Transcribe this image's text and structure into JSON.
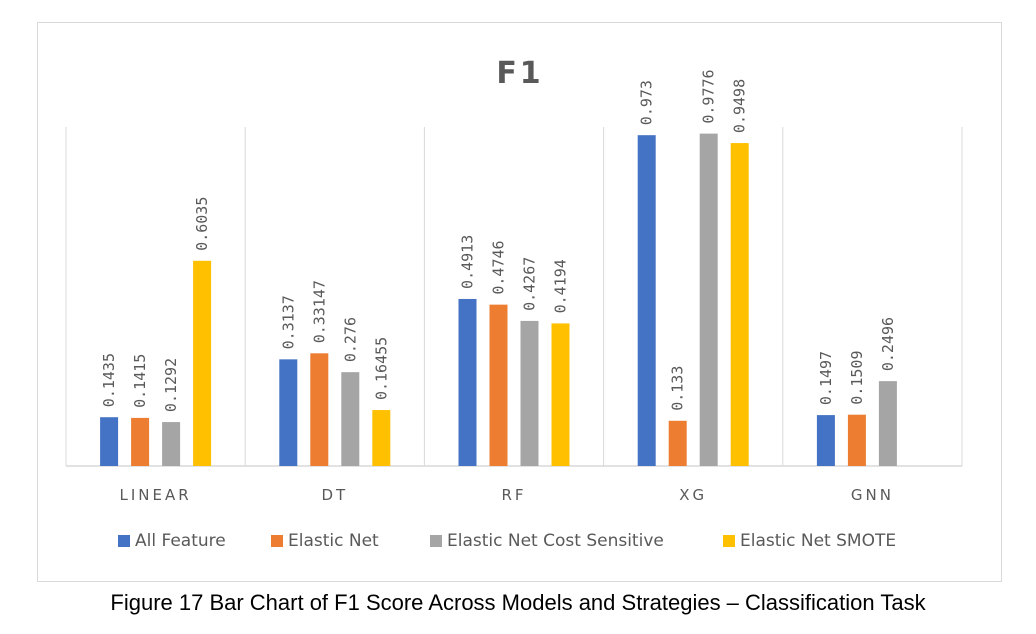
{
  "chart_data": {
    "type": "bar",
    "title": "F1",
    "categories": [
      "LINEAR",
      "DT",
      "RF",
      "XG",
      "GNN"
    ],
    "value_labels": [
      [
        "0.1435",
        "0.1415",
        "0.1292",
        "0.6035"
      ],
      [
        "0.3137",
        "0.33147",
        "0.276",
        "0.16455"
      ],
      [
        "0.4913",
        "0.4746",
        "0.4267",
        "0.4194"
      ],
      [
        "0.973",
        "0.133",
        "0.9776",
        "0.9498"
      ],
      [
        "0.1497",
        "0.1509",
        "0.2496",
        null
      ]
    ],
    "series": [
      {
        "name": "All Feature",
        "color": "#4472c4",
        "values": [
          0.1435,
          0.3137,
          0.4913,
          0.973,
          0.1497
        ]
      },
      {
        "name": "Elastic Net",
        "color": "#ed7d31",
        "values": [
          0.1415,
          0.33147,
          0.4746,
          0.133,
          0.1509
        ]
      },
      {
        "name": "Elastic Net Cost Sensitive",
        "color": "#a5a5a5",
        "values": [
          0.1292,
          0.276,
          0.4267,
          0.9776,
          0.2496
        ]
      },
      {
        "name": "Elastic Net SMOTE",
        "color": "#ffc000",
        "values": [
          0.6035,
          0.16455,
          0.4194,
          0.9498,
          null
        ]
      }
    ],
    "ylim": [
      0,
      1.0
    ],
    "grid": false,
    "legend_position": "bottom"
  },
  "caption": "Figure 17 Bar Chart of F1 Score Across Models and Strategies – Classification Task"
}
